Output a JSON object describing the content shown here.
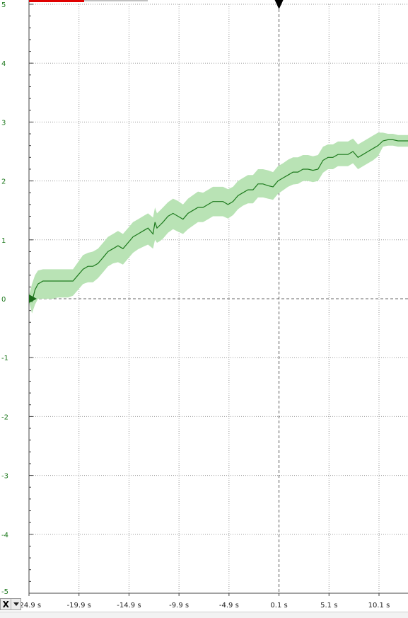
{
  "window": {
    "axis_selector": {
      "label": "X",
      "icon": "chevron-down-icon"
    }
  },
  "chart_data": {
    "type": "line",
    "title": "",
    "xlabel": "",
    "ylabel": "",
    "xlim": [
      -24.9,
      13
    ],
    "ylim": [
      -5,
      5
    ],
    "x_ticks": [
      -24.9,
      -19.9,
      -14.9,
      -9.9,
      -4.9,
      0.1,
      5.1,
      10.1
    ],
    "x_tick_labels": [
      "-24.9 s",
      "-19.9 s",
      "-14.9 s",
      "-9.9 s",
      "-4.9 s",
      "0.1 s",
      "5.1 s",
      "10.1 s"
    ],
    "y_ticks": [
      5,
      4,
      3,
      2,
      1,
      0,
      -1,
      -2,
      -3,
      -4,
      -5
    ],
    "y_tick_labels": [
      "5",
      "4",
      "3",
      "2",
      "1",
      "0",
      "-1",
      "-2",
      "-3",
      "-4",
      "-5"
    ],
    "grid": true,
    "trigger_marker_x": 0.1,
    "zero_marker_y": 0,
    "colors": {
      "line": "#1e7b1e",
      "band": "#b9e3b5",
      "grid": "#9a9a9a",
      "tick_text": "#1f7a1f",
      "top_indicator": "#e00000"
    },
    "series": [
      {
        "x": [
          -24.9,
          -24.6,
          -24.3,
          -24.0,
          -23.5,
          -23.0,
          -22.5,
          -22.0,
          -21.5,
          -21.0,
          -20.5,
          -20.0,
          -19.5,
          -19.0,
          -18.5,
          -18.0,
          -17.5,
          -17.0,
          -16.5,
          -16.0,
          -15.5,
          -15.0,
          -14.5,
          -14.0,
          -13.5,
          -13.0,
          -12.5,
          -12.3,
          -12.1,
          -11.8,
          -11.5,
          -11.0,
          -10.5,
          -10.0,
          -9.5,
          -9.0,
          -8.5,
          -8.0,
          -7.5,
          -7.0,
          -6.5,
          -6.0,
          -5.5,
          -5.0,
          -4.5,
          -4.0,
          -3.5,
          -3.0,
          -2.5,
          -2.0,
          -1.5,
          -1.0,
          -0.5,
          0.0,
          0.5,
          1.0,
          1.5,
          2.0,
          2.5,
          3.0,
          3.5,
          4.0,
          4.5,
          5.0,
          5.5,
          6.0,
          6.5,
          7.0,
          7.5,
          8.0,
          8.5,
          9.0,
          9.5,
          10.0,
          10.5,
          11.0,
          11.5,
          12.0,
          12.5,
          13.0
        ],
        "values": [
          0.0,
          -0.05,
          0.15,
          0.25,
          0.3,
          0.3,
          0.3,
          0.3,
          0.3,
          0.3,
          0.3,
          0.4,
          0.5,
          0.55,
          0.55,
          0.6,
          0.7,
          0.8,
          0.85,
          0.9,
          0.85,
          0.95,
          1.05,
          1.1,
          1.15,
          1.2,
          1.1,
          1.3,
          1.2,
          1.25,
          1.3,
          1.4,
          1.45,
          1.4,
          1.35,
          1.45,
          1.5,
          1.55,
          1.55,
          1.6,
          1.65,
          1.65,
          1.65,
          1.6,
          1.65,
          1.75,
          1.8,
          1.85,
          1.85,
          1.95,
          1.95,
          1.92,
          1.9,
          2.0,
          2.05,
          2.1,
          2.15,
          2.15,
          2.2,
          2.2,
          2.18,
          2.2,
          2.35,
          2.4,
          2.4,
          2.45,
          2.45,
          2.45,
          2.5,
          2.4,
          2.45,
          2.5,
          2.55,
          2.6,
          2.68,
          2.7,
          2.7,
          2.68,
          2.68,
          2.68
        ],
        "lower": [
          -0.05,
          -0.25,
          -0.1,
          0.0,
          0.0,
          0.0,
          0.0,
          0.02,
          0.02,
          0.02,
          0.05,
          0.15,
          0.25,
          0.28,
          0.28,
          0.35,
          0.45,
          0.55,
          0.6,
          0.62,
          0.58,
          0.68,
          0.78,
          0.84,
          0.88,
          0.92,
          0.85,
          1.0,
          0.95,
          0.98,
          1.02,
          1.12,
          1.18,
          1.14,
          1.1,
          1.18,
          1.24,
          1.3,
          1.3,
          1.35,
          1.4,
          1.4,
          1.4,
          1.36,
          1.42,
          1.52,
          1.58,
          1.62,
          1.62,
          1.72,
          1.72,
          1.7,
          1.68,
          1.78,
          1.84,
          1.9,
          1.94,
          1.95,
          2.0,
          2.0,
          1.98,
          2.0,
          2.14,
          2.2,
          2.2,
          2.25,
          2.25,
          2.25,
          2.3,
          2.2,
          2.25,
          2.3,
          2.35,
          2.42,
          2.58,
          2.6,
          2.6,
          2.58,
          2.58,
          2.58
        ],
        "upper": [
          0.05,
          0.25,
          0.4,
          0.48,
          0.5,
          0.5,
          0.5,
          0.5,
          0.5,
          0.5,
          0.5,
          0.62,
          0.74,
          0.78,
          0.8,
          0.85,
          0.95,
          1.05,
          1.1,
          1.15,
          1.1,
          1.2,
          1.3,
          1.35,
          1.4,
          1.45,
          1.38,
          1.55,
          1.45,
          1.5,
          1.55,
          1.64,
          1.7,
          1.66,
          1.6,
          1.7,
          1.76,
          1.82,
          1.8,
          1.85,
          1.9,
          1.9,
          1.9,
          1.86,
          1.9,
          2.0,
          2.05,
          2.1,
          2.1,
          2.2,
          2.2,
          2.18,
          2.15,
          2.25,
          2.3,
          2.36,
          2.4,
          2.4,
          2.44,
          2.44,
          2.42,
          2.44,
          2.58,
          2.62,
          2.62,
          2.67,
          2.67,
          2.67,
          2.72,
          2.62,
          2.67,
          2.72,
          2.77,
          2.82,
          2.82,
          2.8,
          2.8,
          2.78,
          2.78,
          2.78
        ]
      }
    ]
  }
}
